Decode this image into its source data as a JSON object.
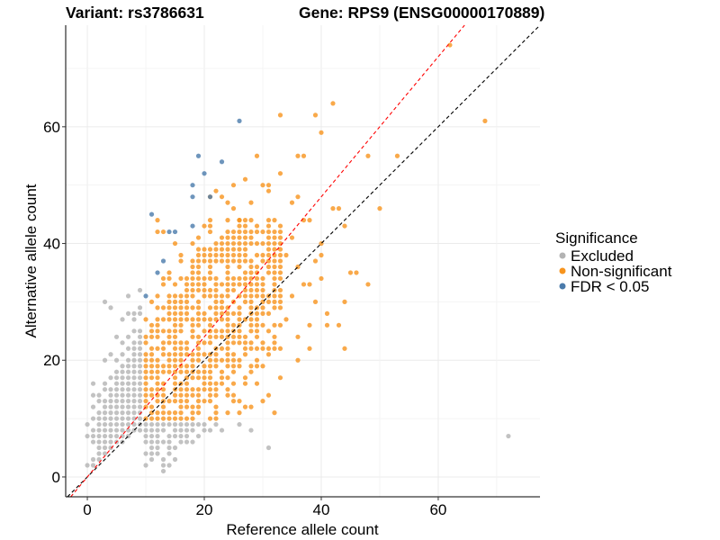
{
  "chart_data": {
    "type": "scatter",
    "title_left": "Variant: rs3786631",
    "title_right": "Gene: RPS9 (ENSG00000170889)",
    "xlabel": "Reference allele count",
    "ylabel": "Alternative allele count",
    "xlim": [
      -3.7,
      77.4
    ],
    "ylim": [
      -3.4,
      77.4
    ],
    "x_ticks": [
      0,
      20,
      40,
      60
    ],
    "y_ticks": [
      0,
      20,
      40,
      60
    ],
    "x_tick_labels": [
      "0",
      "20",
      "40",
      "60"
    ],
    "y_tick_labels": [
      "0",
      "20",
      "40",
      "60"
    ],
    "grid": true,
    "reference_lines": [
      {
        "name": "identity",
        "slope": 1.0,
        "intercept": 0,
        "color": "#000000",
        "style": "dashed"
      },
      {
        "name": "fitted-ratio",
        "slope": 1.2,
        "intercept": 0,
        "color": "#ff0000",
        "style": "dashed"
      }
    ],
    "legend": {
      "title": "Significance",
      "position": "right",
      "entries": [
        {
          "label": "Excluded",
          "color": "#b3b3b3"
        },
        {
          "label": "Non-significant",
          "color": "#f7941d"
        },
        {
          "label": "FDR < 0.05",
          "color": "#4a7bab"
        }
      ]
    },
    "series": [
      {
        "name": "Excluded",
        "color": "#b3b3b3",
        "dense_region": {
          "x_range": [
            0,
            9
          ],
          "y_range": [
            1,
            30
          ],
          "note": "dense integer grid below/around diagonal"
        },
        "points": [
          [
            0,
            2
          ],
          [
            1,
            2
          ],
          [
            1,
            3
          ],
          [
            2,
            3
          ],
          [
            2,
            4
          ],
          [
            3,
            4
          ],
          [
            2,
            5
          ],
          [
            3,
            5
          ],
          [
            4,
            5
          ],
          [
            1,
            6
          ],
          [
            2,
            6
          ],
          [
            3,
            6
          ],
          [
            4,
            6
          ],
          [
            5,
            6
          ],
          [
            6,
            6
          ],
          [
            0,
            7
          ],
          [
            1,
            7
          ],
          [
            2,
            7
          ],
          [
            3,
            7
          ],
          [
            4,
            7
          ],
          [
            5,
            7
          ],
          [
            6,
            7
          ],
          [
            7,
            7
          ],
          [
            1,
            8
          ],
          [
            2,
            8
          ],
          [
            3,
            8
          ],
          [
            4,
            8
          ],
          [
            5,
            8
          ],
          [
            6,
            8
          ],
          [
            7,
            8
          ],
          [
            8,
            8
          ],
          [
            9,
            8
          ],
          [
            0,
            9
          ],
          [
            2,
            9
          ],
          [
            3,
            9
          ],
          [
            4,
            9
          ],
          [
            5,
            9
          ],
          [
            6,
            9
          ],
          [
            7,
            9
          ],
          [
            8,
            9
          ],
          [
            9,
            9
          ],
          [
            1,
            10
          ],
          [
            2,
            10
          ],
          [
            3,
            10
          ],
          [
            4,
            10
          ],
          [
            5,
            10
          ],
          [
            6,
            10
          ],
          [
            7,
            10
          ],
          [
            8,
            10
          ],
          [
            9,
            10
          ],
          [
            2,
            11
          ],
          [
            3,
            11
          ],
          [
            4,
            11
          ],
          [
            5,
            11
          ],
          [
            6,
            11
          ],
          [
            7,
            11
          ],
          [
            8,
            11
          ],
          [
            9,
            11
          ],
          [
            1,
            12
          ],
          [
            3,
            12
          ],
          [
            4,
            12
          ],
          [
            5,
            12
          ],
          [
            6,
            12
          ],
          [
            7,
            12
          ],
          [
            8,
            12
          ],
          [
            9,
            12
          ],
          [
            2,
            13
          ],
          [
            3,
            13
          ],
          [
            4,
            13
          ],
          [
            5,
            13
          ],
          [
            6,
            13
          ],
          [
            7,
            13
          ],
          [
            8,
            13
          ],
          [
            9,
            13
          ],
          [
            1,
            14
          ],
          [
            2,
            14
          ],
          [
            4,
            14
          ],
          [
            5,
            14
          ],
          [
            6,
            14
          ],
          [
            7,
            14
          ],
          [
            8,
            14
          ],
          [
            9,
            14
          ],
          [
            3,
            15
          ],
          [
            4,
            15
          ],
          [
            5,
            15
          ],
          [
            6,
            15
          ],
          [
            7,
            15
          ],
          [
            8,
            15
          ],
          [
            9,
            15
          ],
          [
            1,
            16
          ],
          [
            3,
            16
          ],
          [
            5,
            16
          ],
          [
            6,
            16
          ],
          [
            7,
            16
          ],
          [
            8,
            16
          ],
          [
            9,
            16
          ],
          [
            4,
            17
          ],
          [
            5,
            17
          ],
          [
            6,
            17
          ],
          [
            7,
            17
          ],
          [
            8,
            17
          ],
          [
            9,
            17
          ],
          [
            5,
            18
          ],
          [
            6,
            18
          ],
          [
            7,
            18
          ],
          [
            8,
            18
          ],
          [
            9,
            18
          ],
          [
            6,
            19
          ],
          [
            7,
            19
          ],
          [
            8,
            19
          ],
          [
            9,
            19
          ],
          [
            3,
            20
          ],
          [
            5,
            20
          ],
          [
            7,
            20
          ],
          [
            8,
            20
          ],
          [
            9,
            20
          ],
          [
            4,
            21
          ],
          [
            6,
            21
          ],
          [
            8,
            21
          ],
          [
            9,
            21
          ],
          [
            7,
            22
          ],
          [
            8,
            22
          ],
          [
            9,
            22
          ],
          [
            6,
            23
          ],
          [
            8,
            23
          ],
          [
            9,
            23
          ],
          [
            5,
            24
          ],
          [
            7,
            24
          ],
          [
            9,
            24
          ],
          [
            8,
            25
          ],
          [
            9,
            25
          ],
          [
            6,
            27
          ],
          [
            8,
            27
          ],
          [
            7,
            28
          ],
          [
            8,
            28
          ],
          [
            9,
            28
          ],
          [
            4,
            29
          ],
          [
            9,
            29
          ],
          [
            3,
            30
          ],
          [
            7,
            31
          ],
          [
            9,
            32
          ],
          [
            10,
            9
          ],
          [
            11,
            9
          ],
          [
            12,
            9
          ],
          [
            13,
            9
          ],
          [
            14,
            9
          ],
          [
            15,
            9
          ],
          [
            16,
            9
          ],
          [
            17,
            9
          ],
          [
            18,
            9
          ],
          [
            19,
            9
          ],
          [
            20,
            9
          ],
          [
            22,
            9
          ],
          [
            10,
            8
          ],
          [
            11,
            8
          ],
          [
            12,
            8
          ],
          [
            13,
            8
          ],
          [
            15,
            8
          ],
          [
            16,
            8
          ],
          [
            17,
            8
          ],
          [
            18,
            8
          ],
          [
            20,
            8
          ],
          [
            21,
            8
          ],
          [
            23,
            8
          ],
          [
            10,
            7
          ],
          [
            11,
            7
          ],
          [
            12,
            7
          ],
          [
            14,
            7
          ],
          [
            15,
            7
          ],
          [
            16,
            7
          ],
          [
            17,
            7
          ],
          [
            19,
            7
          ],
          [
            10,
            6
          ],
          [
            11,
            6
          ],
          [
            12,
            6
          ],
          [
            13,
            6
          ],
          [
            14,
            6
          ],
          [
            16,
            6
          ],
          [
            17,
            6
          ],
          [
            18,
            6
          ],
          [
            11,
            5
          ],
          [
            12,
            5
          ],
          [
            14,
            5
          ],
          [
            15,
            5
          ],
          [
            10,
            4
          ],
          [
            11,
            4
          ],
          [
            12,
            4
          ],
          [
            14,
            4
          ],
          [
            11,
            3
          ],
          [
            13,
            3
          ],
          [
            10,
            2
          ],
          [
            13,
            2
          ],
          [
            13,
            1
          ],
          [
            26,
            9
          ],
          [
            31,
            5
          ],
          [
            72,
            7
          ],
          [
            28,
            8
          ],
          [
            15,
            3
          ],
          [
            14,
            2
          ]
        ]
      },
      {
        "name": "Non-significant",
        "color": "#f7941d",
        "dense_region": {
          "x_range": [
            10,
            35
          ],
          "y_range": [
            10,
            45
          ],
          "note": "dense integer grid"
        },
        "points": [
          [
            62,
            74
          ],
          [
            42,
            64
          ],
          [
            33,
            62
          ],
          [
            39,
            62
          ],
          [
            40,
            59
          ],
          [
            68,
            61
          ],
          [
            29,
            55
          ],
          [
            36,
            55
          ],
          [
            37,
            55
          ],
          [
            48,
            55
          ],
          [
            53,
            55
          ],
          [
            33,
            52
          ],
          [
            30,
            50
          ],
          [
            31,
            50
          ],
          [
            50,
            46
          ],
          [
            42,
            46
          ],
          [
            43,
            46
          ],
          [
            44,
            43
          ],
          [
            45,
            35
          ],
          [
            46,
            35
          ],
          [
            48,
            33
          ],
          [
            44,
            30
          ],
          [
            43,
            26
          ],
          [
            41,
            26
          ],
          [
            38,
            26
          ],
          [
            38,
            22
          ],
          [
            44,
            22
          ],
          [
            39,
            37
          ],
          [
            40,
            40
          ],
          [
            35,
            41
          ],
          [
            37,
            44
          ],
          [
            38,
            44
          ],
          [
            35,
            47
          ],
          [
            36,
            48
          ],
          [
            31,
            49
          ],
          [
            28,
            47
          ],
          [
            25,
            46
          ],
          [
            24,
            47
          ],
          [
            26,
            44
          ],
          [
            23,
            48
          ],
          [
            27,
            51
          ],
          [
            22,
            49
          ],
          [
            21,
            48
          ],
          [
            25,
            50
          ],
          [
            34,
            38
          ],
          [
            36,
            36
          ],
          [
            37,
            33
          ],
          [
            33,
            30
          ],
          [
            35,
            31
          ],
          [
            38,
            33
          ],
          [
            40,
            34
          ],
          [
            39,
            30
          ],
          [
            34,
            27
          ],
          [
            36,
            24
          ],
          [
            32,
            22
          ],
          [
            30,
            19
          ],
          [
            33,
            17
          ],
          [
            29,
            16
          ],
          [
            31,
            14
          ],
          [
            27,
            12
          ],
          [
            26,
            11
          ],
          [
            24,
            11
          ],
          [
            22,
            10
          ],
          [
            36,
            20
          ],
          [
            41,
            28
          ],
          [
            40,
            38
          ]
        ],
        "grid_fill": {
          "x": [
            10,
            33
          ],
          "y": [
            10,
            44
          ],
          "density": 0.8
        }
      },
      {
        "name": "FDR < 0.05",
        "color": "#4a7bab",
        "points": [
          [
            26,
            61
          ],
          [
            19,
            55
          ],
          [
            23,
            54
          ],
          [
            20,
            52
          ],
          [
            18,
            50
          ],
          [
            18,
            48
          ],
          [
            21,
            48
          ],
          [
            11,
            45
          ],
          [
            18,
            43
          ],
          [
            14,
            42
          ],
          [
            15,
            42
          ],
          [
            13,
            37
          ],
          [
            12,
            35
          ],
          [
            10,
            31
          ]
        ]
      }
    ]
  }
}
